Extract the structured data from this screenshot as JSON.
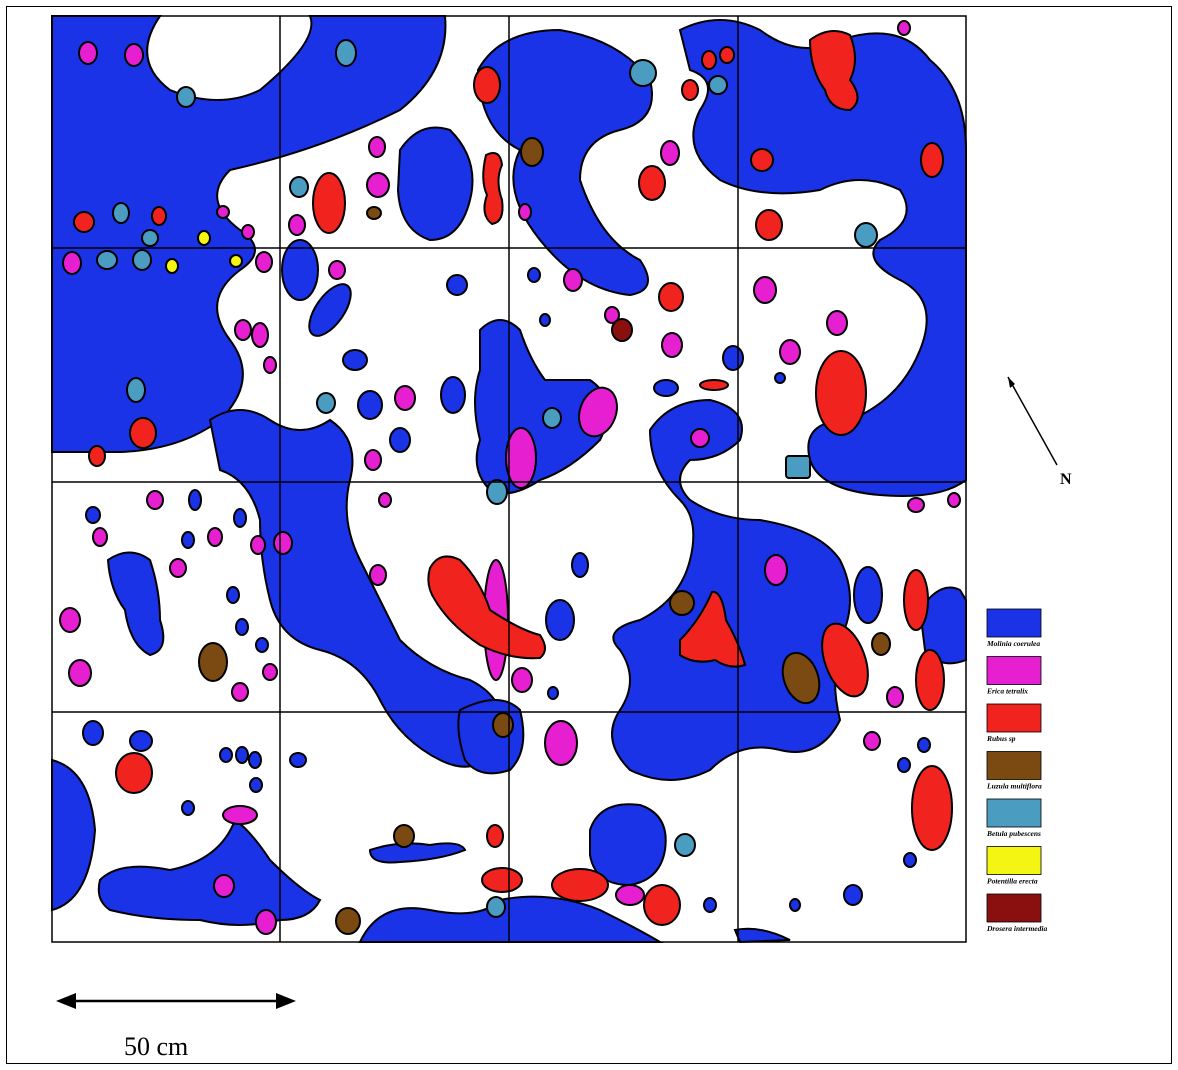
{
  "colors": {
    "molinia": "#1a33e6",
    "erica": "#e61fd1",
    "rubus": "#f0231f",
    "luzula": "#7a4a12",
    "betula": "#4a9cc0",
    "potentilla": "#f5f514",
    "drosera": "#8a1010"
  },
  "legend": [
    {
      "key": "molinia",
      "label": "Molinia coerulea"
    },
    {
      "key": "erica",
      "label": "Erica tetralix"
    },
    {
      "key": "rubus",
      "label": "Rubus sp"
    },
    {
      "key": "luzula",
      "label": "Luzula multiflora"
    },
    {
      "key": "betula",
      "label": "Betula pubescens"
    },
    {
      "key": "potentilla",
      "label": "Potentilla erecta"
    },
    {
      "key": "drosera",
      "label": "Drosera intermedia"
    }
  ],
  "north_label": "N",
  "scale_label": "50 cm"
}
